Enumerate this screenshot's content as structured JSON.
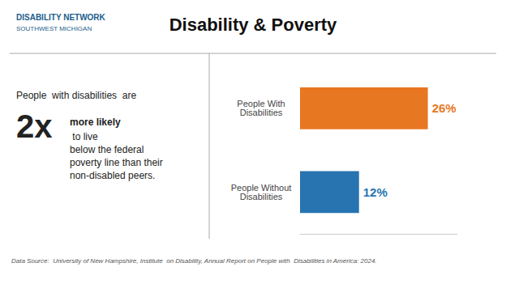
{
  "chart_data": {
    "type": "bar",
    "title": "Disability & Poverty",
    "orientation": "horizontal",
    "categories": [
      "People With\nDisabilities",
      "People Without\nDisabilities"
    ],
    "values": [
      26,
      12
    ],
    "value_labels": [
      "26%",
      "12%"
    ],
    "colors": [
      "#E87722",
      "#2874B0"
    ],
    "data_labels": true,
    "xlim": [
      0,
      32
    ],
    "grid": false,
    "tick_labels": "y",
    "annotations": [
      "People  with disabilities  are",
      "2x",
      "more likely",
      " to live\nbelow the federal\npoverty line than their\nnon-disabled peers.",
      "DISABILITY NETWORK",
      "SOUTHWEST MICHIGAN",
      "Data Source:  University of New Hampshire, Institute  on Disability, Annual Report on People with  Disabilities in America: 2024."
    ]
  }
}
